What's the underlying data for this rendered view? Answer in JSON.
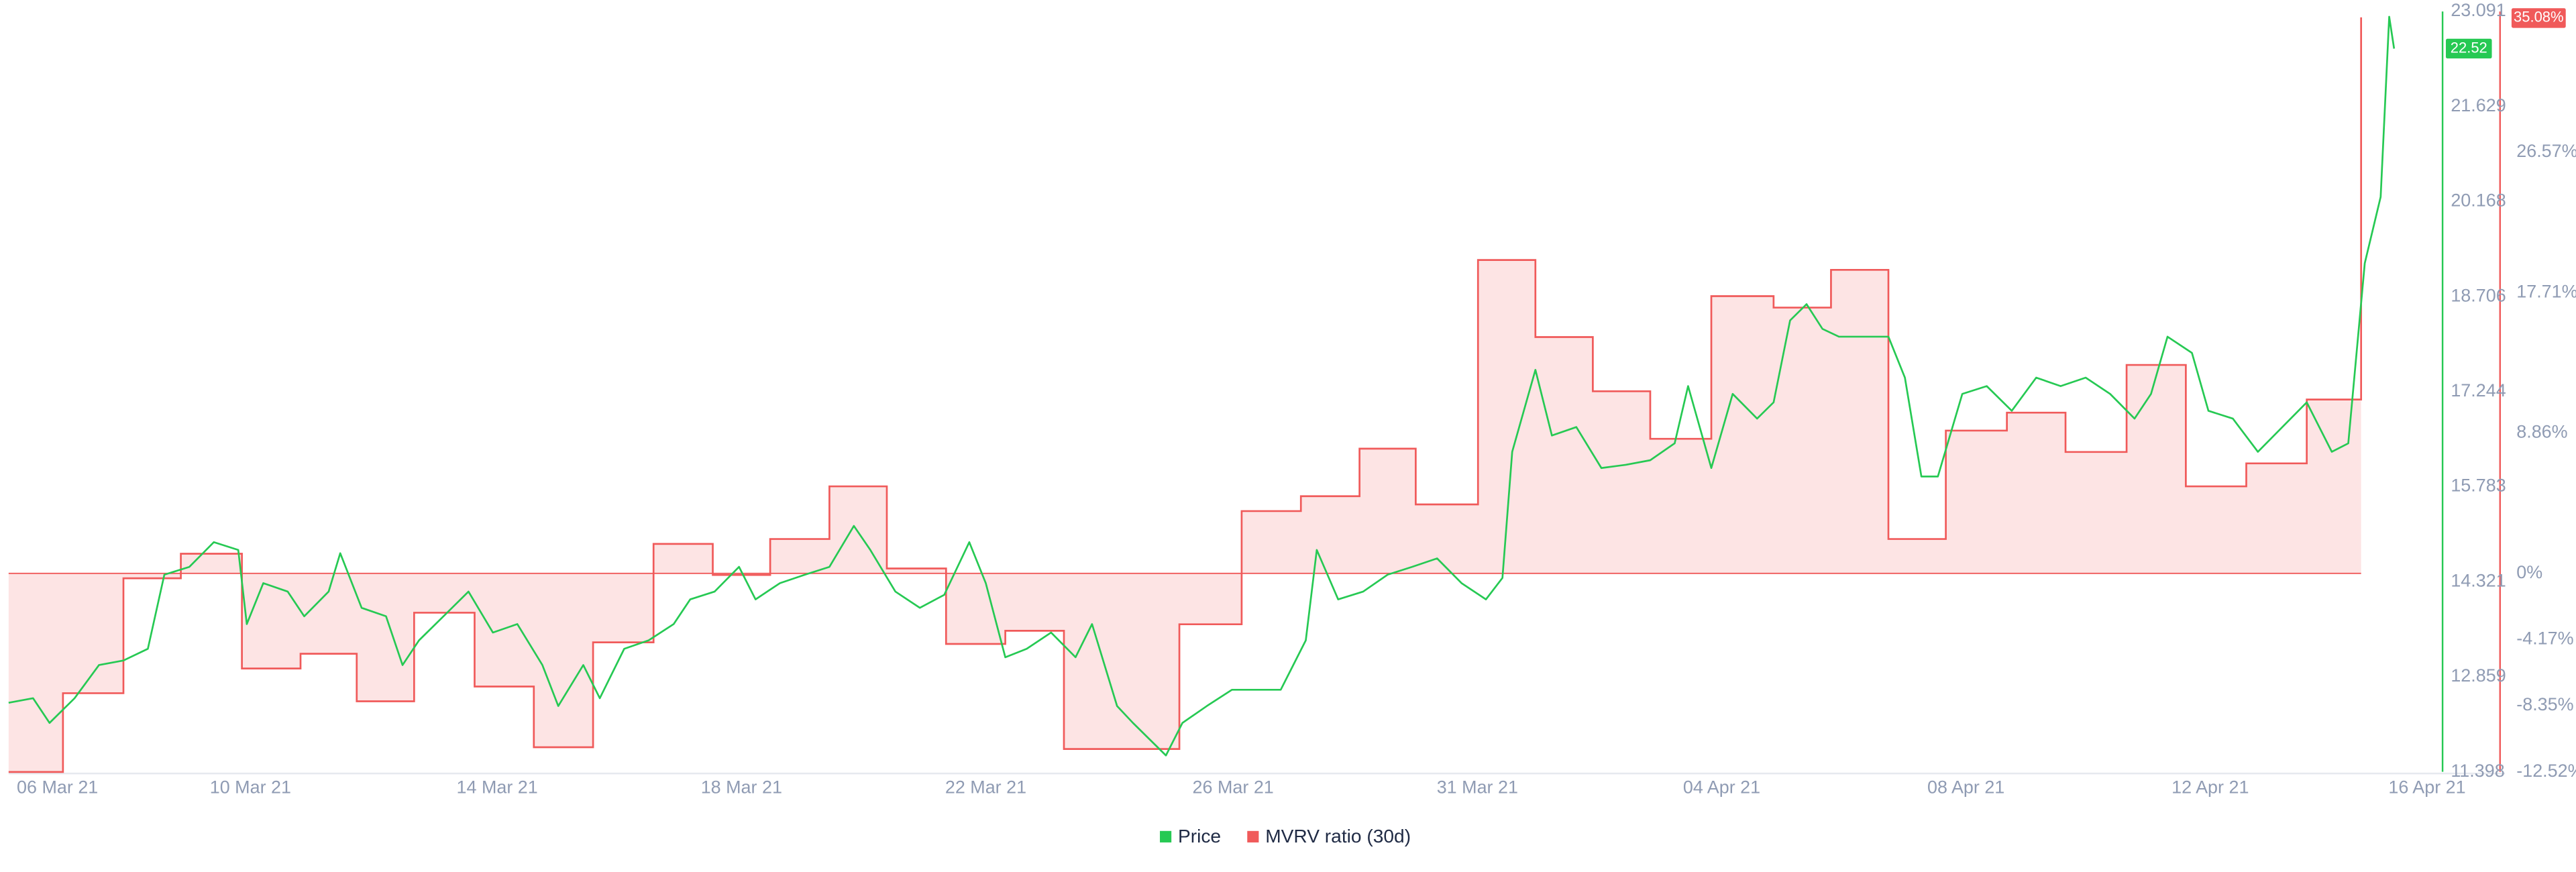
{
  "chart_data": {
    "type": "line",
    "xlim": [
      0,
      39.8
    ],
    "xticks": [
      {
        "value": 0.8,
        "label": "06 Mar 21"
      },
      {
        "value": 3.96,
        "label": "10 Mar 21"
      },
      {
        "value": 8.0,
        "label": "14 Mar 21"
      },
      {
        "value": 12.0,
        "label": "18 Mar 21"
      },
      {
        "value": 16.0,
        "label": "22 Mar 21"
      },
      {
        "value": 20.05,
        "label": "26 Mar 21"
      },
      {
        "value": 24.05,
        "label": "31 Mar 21"
      },
      {
        "value": 28.05,
        "label": "04 Apr 21"
      },
      {
        "value": 32.05,
        "label": "08 Apr 21"
      },
      {
        "value": 36.05,
        "label": "12 Apr 21"
      },
      {
        "value": 39.6,
        "label": "16 Apr 21"
      }
    ],
    "ylim": [
      11.398,
      23.091
    ],
    "yticks": [
      11.398,
      12.859,
      14.321,
      15.783,
      17.244,
      18.706,
      20.168,
      21.629,
      23.091
    ],
    "y2lim": [
      -12.52,
      35.45
    ],
    "y2ticks": [
      {
        "value": -12.52,
        "label": "-12.52%"
      },
      {
        "value": -8.35,
        "label": "-8.35%"
      },
      {
        "value": -4.17,
        "label": "-4.17%"
      },
      {
        "value": 0,
        "label": "0%"
      },
      {
        "value": 8.86,
        "label": "8.86%"
      },
      {
        "value": 17.71,
        "label": "17.71%"
      },
      {
        "value": 26.57,
        "label": "26.57%"
      }
    ],
    "series": [
      {
        "name": "Price",
        "color": "#26c953",
        "x": [
          0,
          0.4,
          0.67,
          1.08,
          1.48,
          1.88,
          2.28,
          2.55,
          2.96,
          3.36,
          3.76,
          3.9,
          4.17,
          4.57,
          4.84,
          5.24,
          5.43,
          5.78,
          6.18,
          6.45,
          6.72,
          7.12,
          7.53,
          7.93,
          8.33,
          8.74,
          9.0,
          9.41,
          9.68,
          10.08,
          10.48,
          10.89,
          11.16,
          11.56,
          11.96,
          12.23,
          12.63,
          13.04,
          13.44,
          13.84,
          14.11,
          14.52,
          14.92,
          15.32,
          15.73,
          16.0,
          16.32,
          16.67,
          17.07,
          17.47,
          17.74,
          18.15,
          18.41,
          18.68,
          18.95,
          19.22,
          19.62,
          20.03,
          20.43,
          20.83,
          21.24,
          21.42,
          21.77,
          22.18,
          22.58,
          22.98,
          23.39,
          23.79,
          24.19,
          24.46,
          24.62,
          25.0,
          25.27,
          25.67,
          26.08,
          26.48,
          26.88,
          27.28,
          27.5,
          27.88,
          28.23,
          28.63,
          28.9,
          29.17,
          29.44,
          29.7,
          29.97,
          30.38,
          30.78,
          31.05,
          31.32,
          31.59,
          31.99,
          32.39,
          32.8,
          33.2,
          33.6,
          34.01,
          34.41,
          34.81,
          35.08,
          35.35,
          35.75,
          36.02,
          36.42,
          36.83,
          37.23,
          37.63,
          38.04,
          38.31,
          38.58,
          38.84,
          38.98,
          39.06
        ],
        "values": [
          12.46,
          12.53,
          12.15,
          12.53,
          13.04,
          13.11,
          13.29,
          14.43,
          14.55,
          14.93,
          14.81,
          13.67,
          14.3,
          14.17,
          13.79,
          14.17,
          14.76,
          13.92,
          13.79,
          13.04,
          13.42,
          13.79,
          14.17,
          13.54,
          13.67,
          13.04,
          12.41,
          13.04,
          12.53,
          13.29,
          13.42,
          13.67,
          14.05,
          14.17,
          14.55,
          14.05,
          14.3,
          14.43,
          14.55,
          15.18,
          14.81,
          14.17,
          13.92,
          14.12,
          14.93,
          14.3,
          13.16,
          13.29,
          13.54,
          13.16,
          13.67,
          12.41,
          12.15,
          11.9,
          11.65,
          12.15,
          12.41,
          12.66,
          12.66,
          12.66,
          13.42,
          14.81,
          14.05,
          14.17,
          14.43,
          14.55,
          14.68,
          14.3,
          14.05,
          14.38,
          16.32,
          17.58,
          16.57,
          16.7,
          16.07,
          16.12,
          16.19,
          16.45,
          17.33,
          16.07,
          17.21,
          16.83,
          17.08,
          18.34,
          18.59,
          18.21,
          18.09,
          18.09,
          18.09,
          17.46,
          15.94,
          15.94,
          17.21,
          17.33,
          16.95,
          17.46,
          17.33,
          17.46,
          17.21,
          16.83,
          17.21,
          18.09,
          17.84,
          16.95,
          16.83,
          16.32,
          16.7,
          17.08,
          16.32,
          16.45,
          19.22,
          20.24,
          23.01,
          22.52
        ]
      },
      {
        "name": "MVRV ratio (30d)",
        "color": "#f05a5a",
        "fill": "#fde4e4",
        "axis": "y2",
        "step": true,
        "x": [
          0,
          0.89,
          1.88,
          2.82,
          3.82,
          4.78,
          5.7,
          6.64,
          7.63,
          8.6,
          9.57,
          10.56,
          11.53,
          12.47,
          13.44,
          14.38,
          15.35,
          16.32,
          17.28,
          19.17,
          20.19,
          21.16,
          22.12,
          23.04,
          24.06,
          25.0,
          25.94,
          26.88,
          27.88,
          28.9,
          29.84,
          30.78,
          31.72,
          32.72,
          33.68,
          34.68,
          35.65,
          36.64,
          37.63,
          38.52
        ],
        "values": [
          -12.53,
          -7.56,
          -0.31,
          1.24,
          -6.0,
          -5.07,
          -8.07,
          -2.48,
          -7.14,
          -10.97,
          -4.35,
          1.86,
          -0.1,
          2.17,
          5.49,
          0.31,
          -4.45,
          -3.62,
          -11.08,
          -3.21,
          3.93,
          4.87,
          7.87,
          4.35,
          19.77,
          14.91,
          11.49,
          8.49,
          17.49,
          16.77,
          19.15,
          2.17,
          9.01,
          10.14,
          7.66,
          13.15,
          5.49,
          6.94,
          10.97,
          35.08
        ],
        "value_labels": [
          null,
          null,
          null,
          null,
          null,
          null,
          null,
          null,
          null,
          null,
          null,
          null,
          null,
          null,
          null,
          null,
          null,
          null,
          null,
          null,
          null,
          null,
          null,
          null,
          null,
          null,
          null,
          null,
          null,
          null,
          null,
          null,
          null,
          null,
          null,
          null,
          null,
          null,
          null,
          "35.08%"
        ]
      }
    ]
  }
}
